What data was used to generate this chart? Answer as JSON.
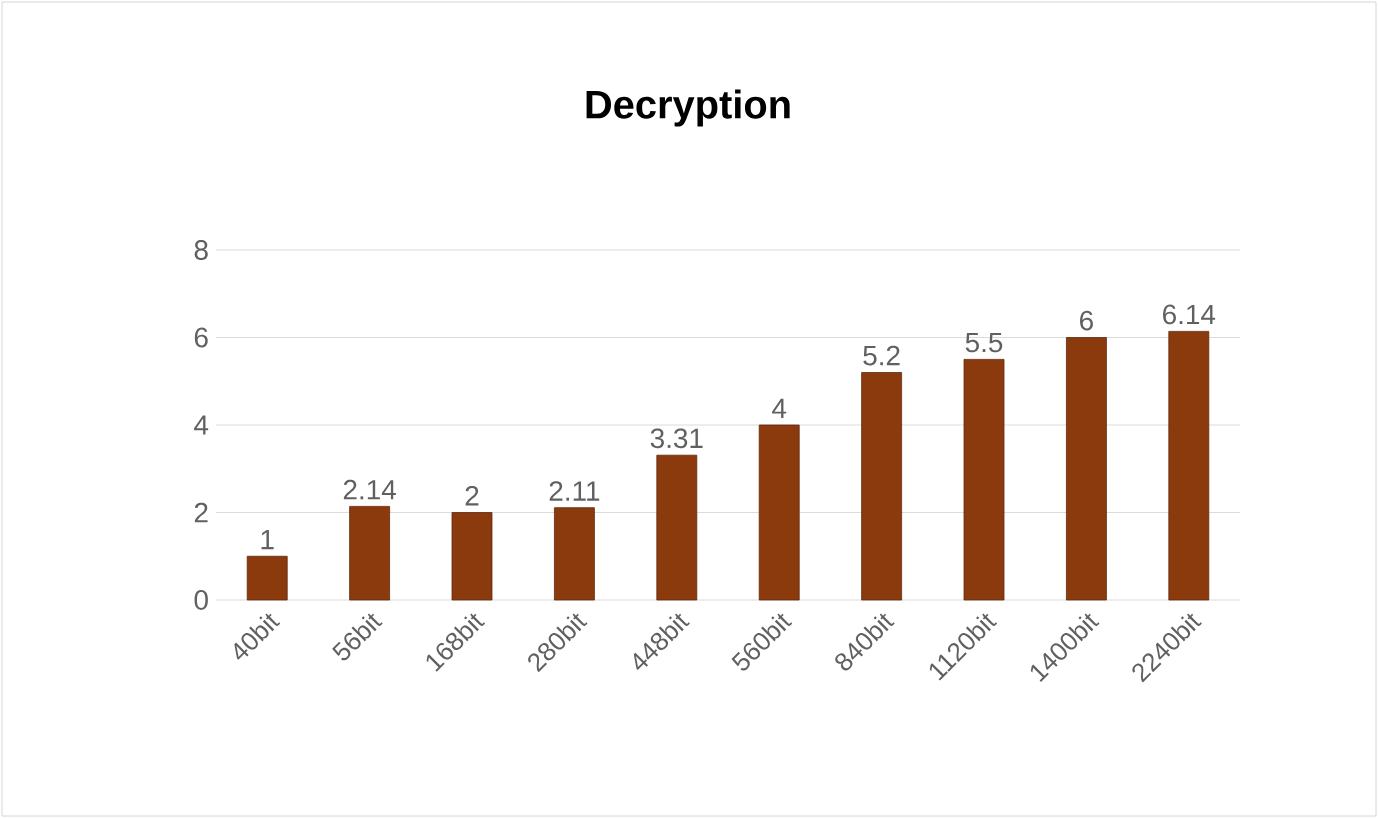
{
  "chart_data": {
    "type": "bar",
    "title": "Decryption",
    "categories": [
      "40bit",
      "56bit",
      "168bit",
      "280bit",
      "448bit",
      "560bit",
      "840bit",
      "1120bit",
      "1400bit",
      "2240bit"
    ],
    "values": [
      1,
      2.14,
      2,
      2.11,
      3.31,
      4,
      5.2,
      5.5,
      6,
      6.14
    ],
    "color": "#8b3a0e",
    "ylim": [
      0,
      8
    ],
    "yticks": [
      0,
      2,
      4,
      6,
      8
    ],
    "grid": "y",
    "data_labels": true
  }
}
